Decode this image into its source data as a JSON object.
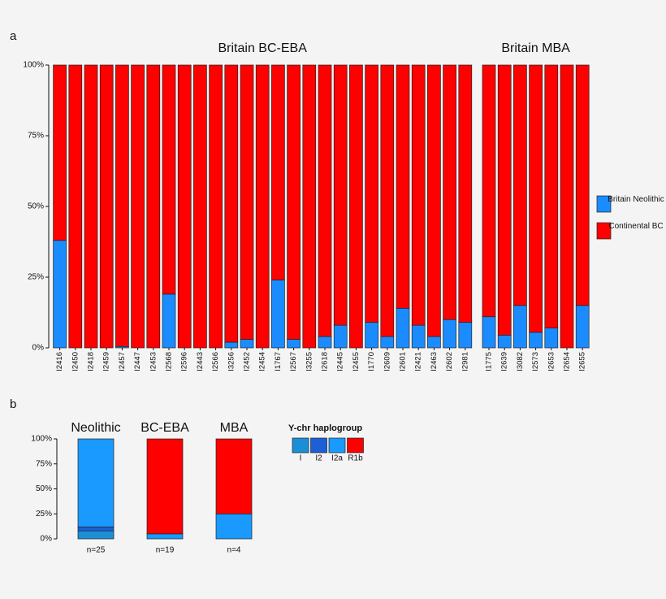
{
  "chart_data": [
    {
      "type": "bar",
      "stacked": true,
      "panel_label": "a",
      "ylim": [
        0,
        100
      ],
      "yticks": [
        {
          "value": 0,
          "label": "0%"
        },
        {
          "value": 25,
          "label": "25%"
        },
        {
          "value": 50,
          "label": "50%"
        },
        {
          "value": 75,
          "label": "75%"
        },
        {
          "value": 100,
          "label": "100%"
        }
      ],
      "legend_position": "right",
      "series": [
        {
          "name": "Britain Neolithic",
          "color": "#1a8cff",
          "values": [
            [
              38,
              0,
              0,
              0,
              0.5,
              0,
              0,
              19,
              0,
              0,
              0,
              2,
              3,
              0,
              24,
              3,
              0,
              4,
              8,
              0,
              9,
              4,
              14,
              8,
              4,
              10,
              9
            ],
            [
              11,
              4.5,
              15,
              5.5,
              7,
              0,
              15
            ]
          ]
        },
        {
          "name": "Continental BC",
          "color": "#ff0000",
          "values": [
            [
              62,
              100,
              100,
              100,
              99.5,
              100,
              100,
              81,
              100,
              100,
              100,
              98,
              97,
              100,
              76,
              97,
              100,
              96,
              92,
              100,
              91,
              96,
              86,
              92,
              96,
              90,
              91
            ],
            [
              89,
              95.5,
              85,
              94.5,
              93,
              100,
              85
            ]
          ]
        }
      ],
      "facets": [
        {
          "title": "Britain BC-EBA",
          "categories": [
            "I2416",
            "I2450",
            "I2418",
            "I2459",
            "I2457",
            "I2447",
            "I2453",
            "I2568",
            "I2596",
            "I2443",
            "I2566",
            "I3256",
            "I2452",
            "I2454",
            "I1767",
            "I2567",
            "I3255",
            "I2618",
            "I2445",
            "I2455",
            "I1770",
            "I2609",
            "I2601",
            "I2421",
            "I2463",
            "I2602",
            "I2981"
          ]
        },
        {
          "title": "Britain MBA",
          "categories": [
            "I1775",
            "I2639",
            "I3082",
            "I2573",
            "I2653",
            "I2654",
            "I2655"
          ]
        }
      ]
    },
    {
      "type": "bar",
      "stacked": true,
      "panel_label": "b",
      "ylim": [
        0,
        100
      ],
      "yticks": [
        {
          "value": 0,
          "label": "0%"
        },
        {
          "value": 25,
          "label": "25%"
        },
        {
          "value": 50,
          "label": "50%"
        },
        {
          "value": 75,
          "label": "75%"
        },
        {
          "value": 100,
          "label": "100%"
        }
      ],
      "categories": [
        "Neolithic",
        "BC-EBA",
        "MBA"
      ],
      "sample_sizes": [
        "n=25",
        "n=19",
        "n=4"
      ],
      "legend_title": "Y-chr haplogroup",
      "series": [
        {
          "name": "I",
          "color": "#1b8fd6",
          "values": [
            8,
            0,
            0
          ]
        },
        {
          "name": "I2",
          "color": "#1c5fd6",
          "values": [
            4,
            0,
            0
          ]
        },
        {
          "name": "I2a",
          "color": "#1a9aff",
          "values": [
            88,
            5,
            25
          ]
        },
        {
          "name": "R1b",
          "color": "#ff0000",
          "values": [
            0,
            95,
            75
          ]
        }
      ]
    }
  ]
}
